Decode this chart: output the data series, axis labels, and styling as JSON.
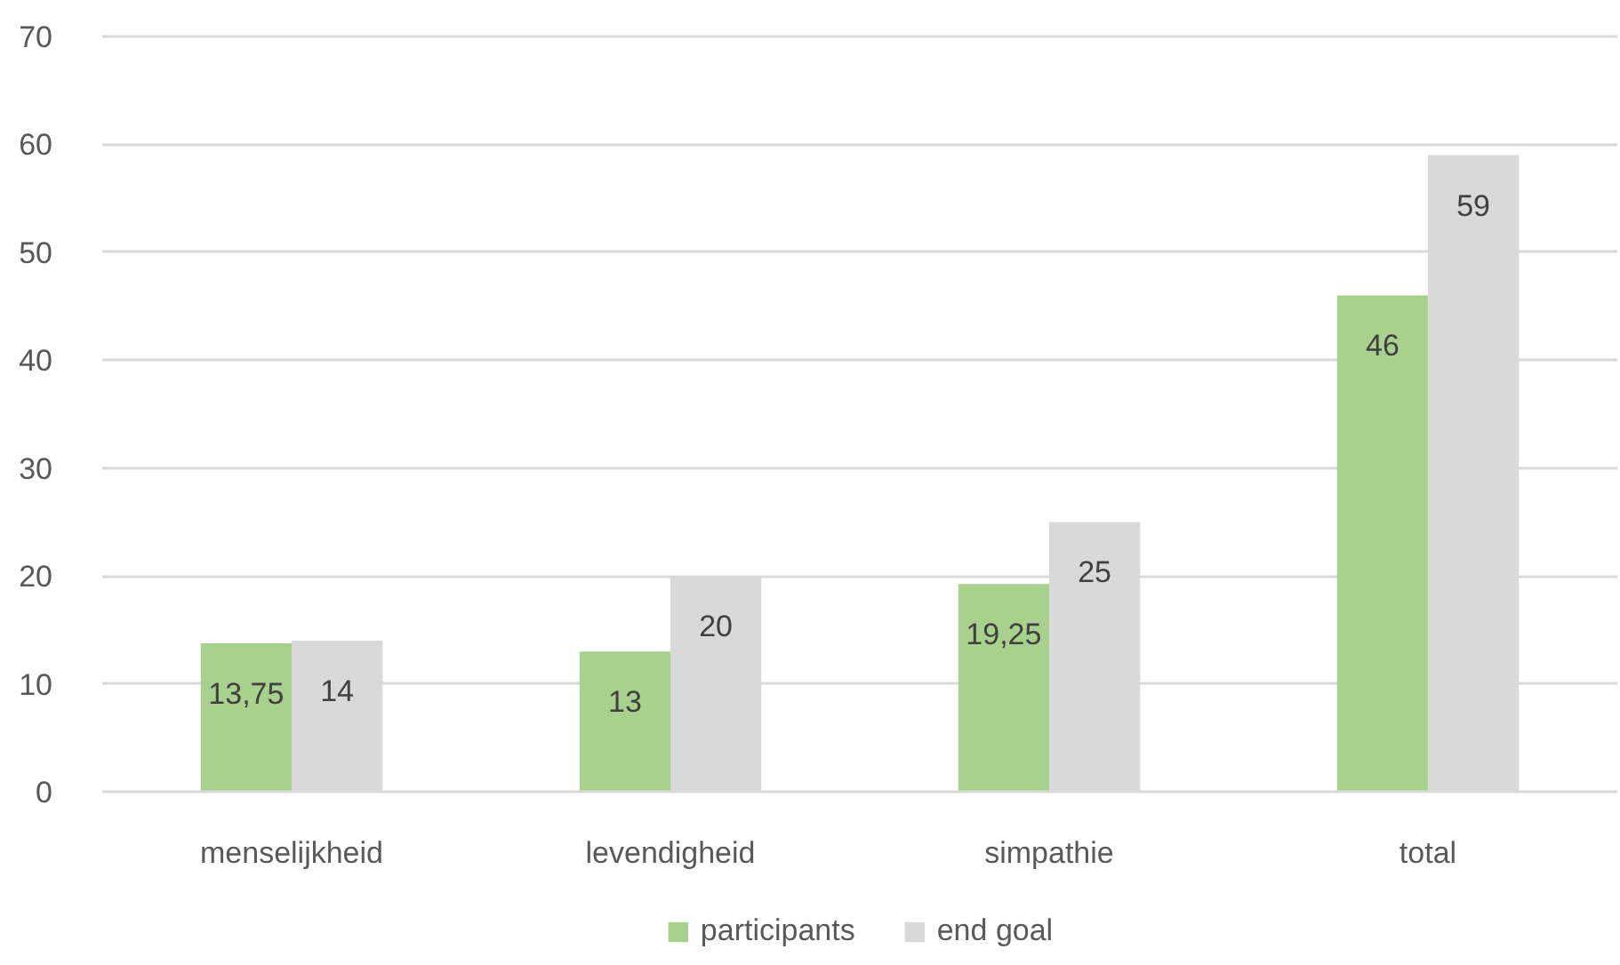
{
  "chart_data": {
    "type": "bar",
    "categories": [
      "menselijkheid",
      "levendigheid",
      "simpathie",
      "total"
    ],
    "series": [
      {
        "name": "participants",
        "color": "#a9d18e",
        "values": [
          13.75,
          13,
          19.25,
          46
        ],
        "value_labels": [
          "13,75",
          "13",
          "19,25",
          "46"
        ]
      },
      {
        "name": "end goal",
        "color": "#d9d9d9",
        "values": [
          14,
          20,
          25,
          59
        ],
        "value_labels": [
          "14",
          "20",
          "25",
          "59"
        ]
      }
    ],
    "ylim": [
      0,
      70
    ],
    "yticks": [
      0,
      10,
      20,
      30,
      40,
      50,
      60,
      70
    ],
    "grid": "y",
    "legend": "bottom"
  }
}
